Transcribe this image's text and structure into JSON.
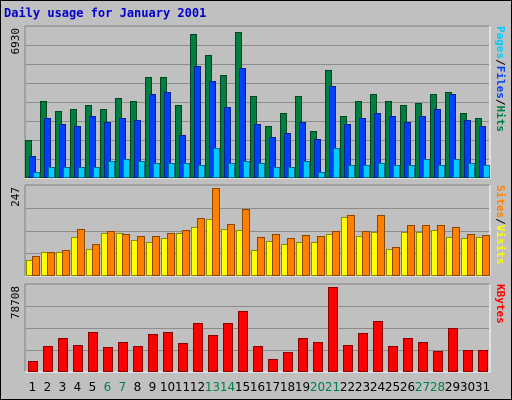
{
  "title": "Daily usage for January 2001",
  "chart_data": [
    {
      "type": "bar",
      "ymax_label": "6930",
      "ylim": [
        0,
        6930
      ],
      "x": [
        "1",
        "2",
        "3",
        "4",
        "5",
        "6",
        "7",
        "8",
        "9",
        "10",
        "11",
        "12",
        "13",
        "14",
        "15",
        "16",
        "17",
        "18",
        "19",
        "20",
        "21",
        "22",
        "23",
        "24",
        "25",
        "26",
        "27",
        "28",
        "29",
        "30",
        "31"
      ],
      "weekend_days": [
        "6",
        "7",
        "13",
        "14",
        "20",
        "21",
        "27",
        "28"
      ],
      "legend": [
        {
          "text": "Pages",
          "color": "#00ccff"
        },
        {
          "text": "/",
          "color": "#000000"
        },
        {
          "text": "Files",
          "color": "#0040ff"
        },
        {
          "text": "/",
          "color": "#000000"
        },
        {
          "text": "Hits",
          "color": "#008040"
        }
      ],
      "series": [
        {
          "name": "Hits",
          "color": "#008040",
          "values": [
            1750,
            3600,
            3100,
            3200,
            3400,
            3200,
            3700,
            3600,
            4700,
            4700,
            3400,
            6700,
            5700,
            4800,
            6800,
            3800,
            2400,
            3000,
            3800,
            2200,
            5000,
            2900,
            3600,
            3900,
            3600,
            3400,
            3500,
            3900,
            4000,
            3000,
            2800
          ]
        },
        {
          "name": "Files",
          "color": "#0040ff",
          "values": [
            1000,
            2800,
            2500,
            2400,
            2900,
            2600,
            2800,
            2700,
            3900,
            4000,
            2000,
            5200,
            4500,
            3300,
            5100,
            2500,
            1900,
            2100,
            2600,
            1800,
            4300,
            2500,
            2800,
            3000,
            2900,
            2600,
            2900,
            3200,
            3900,
            2700,
            2400
          ]
        },
        {
          "name": "Pages",
          "color": "#00ccff",
          "values": [
            300,
            500,
            500,
            500,
            500,
            800,
            900,
            800,
            700,
            700,
            700,
            600,
            1400,
            700,
            800,
            700,
            500,
            500,
            800,
            300,
            1400,
            600,
            600,
            700,
            600,
            600,
            900,
            600,
            900,
            700,
            600
          ]
        }
      ]
    },
    {
      "type": "bar",
      "ymax_label": "247",
      "ylim": [
        0,
        247
      ],
      "x": [
        "1",
        "2",
        "3",
        "4",
        "5",
        "6",
        "7",
        "8",
        "9",
        "10",
        "11",
        "12",
        "13",
        "14",
        "15",
        "16",
        "17",
        "18",
        "19",
        "20",
        "21",
        "22",
        "23",
        "24",
        "25",
        "26",
        "27",
        "28",
        "29",
        "30",
        "31"
      ],
      "legend": [
        {
          "text": "Sites",
          "color": "#ff8000"
        },
        {
          "text": "/",
          "color": "#000000"
        },
        {
          "text": "Visits",
          "color": "#ffff00"
        }
      ],
      "series": [
        {
          "name": "Visits",
          "color": "#ffff00",
          "values": [
            45,
            67,
            67,
            110,
            76,
            122,
            122,
            100,
            96,
            107,
            122,
            137,
            159,
            132,
            128,
            72,
            97,
            90,
            95,
            95,
            117,
            165,
            111,
            123,
            77,
            123,
            123,
            128,
            109,
            108,
            110
          ]
        },
        {
          "name": "Sites",
          "color": "#ff8000",
          "values": [
            55,
            68,
            73,
            132,
            90,
            126,
            119,
            113,
            111,
            121,
            128,
            162,
            247,
            147,
            188,
            109,
            119,
            108,
            115,
            112,
            126,
            170,
            127,
            171,
            80,
            144,
            144,
            144,
            137,
            119,
            114
          ]
        }
      ]
    },
    {
      "type": "bar",
      "ymax_label": "78708",
      "ylim": [
        0,
        78708
      ],
      "x": [
        "1",
        "2",
        "3",
        "4",
        "5",
        "6",
        "7",
        "8",
        "9",
        "10",
        "11",
        "12",
        "13",
        "14",
        "15",
        "16",
        "17",
        "18",
        "19",
        "20",
        "21",
        "22",
        "23",
        "24",
        "25",
        "26",
        "27",
        "28",
        "29",
        "30",
        "31"
      ],
      "legend": [
        {
          "text": "KBytes",
          "color": "#ff0000"
        }
      ],
      "series": [
        {
          "name": "KBytes",
          "color": "#ff0000",
          "values": [
            10500,
            24300,
            31800,
            25300,
            36700,
            23200,
            27800,
            24200,
            34900,
            37500,
            26400,
            45800,
            33900,
            45600,
            56500,
            24300,
            12300,
            18400,
            31800,
            27900,
            78708,
            24700,
            36500,
            47000,
            23700,
            31600,
            27600,
            19900,
            40700,
            20500,
            20500
          ]
        }
      ]
    }
  ]
}
